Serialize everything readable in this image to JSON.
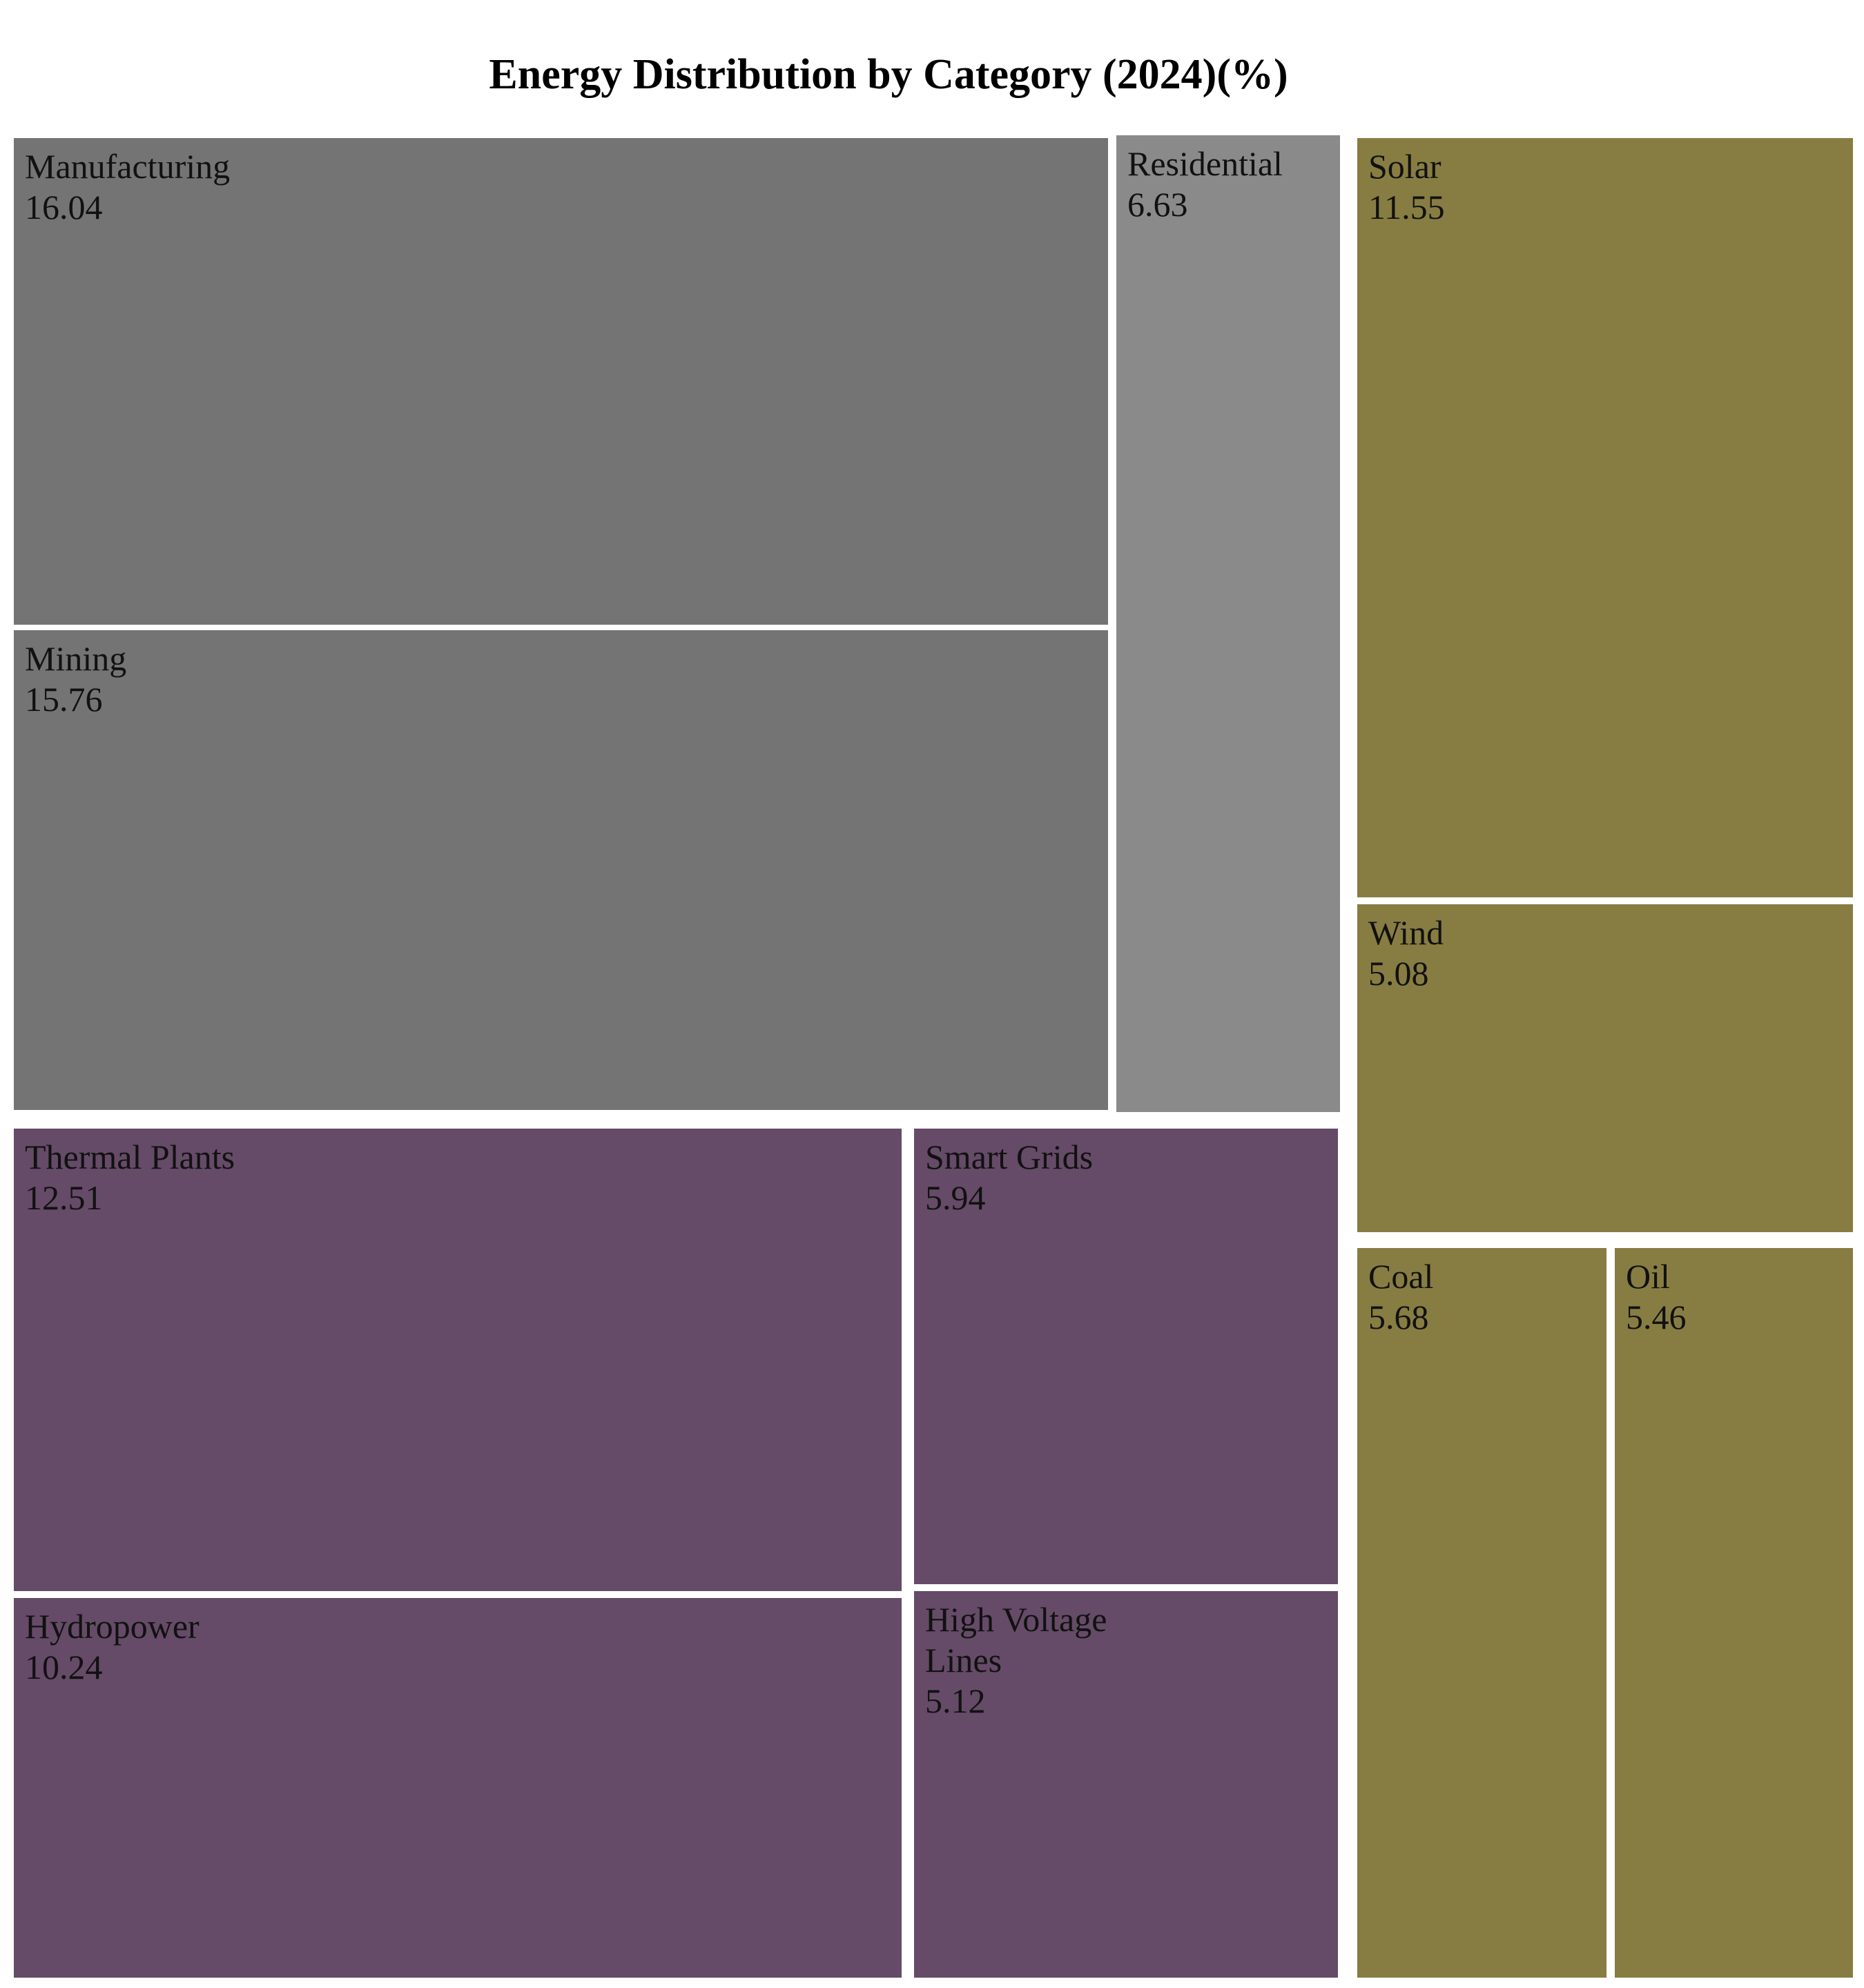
{
  "chart_data": {
    "type": "treemap",
    "title": "Energy Distribution by Category (2024)(%)",
    "colors": {
      "gray-dark": "#747474",
      "gray-light": "#8a8a8a",
      "purple": "#654b67",
      "olive": "#877d42"
    },
    "items": [
      {
        "label": "Manufacturing",
        "value": 16.04,
        "color": "gray-dark"
      },
      {
        "label": "Mining",
        "value": 15.76,
        "color": "gray-dark"
      },
      {
        "label": "Residential",
        "value": 6.63,
        "color": "gray-light"
      },
      {
        "label": "Thermal Plants",
        "value": 12.51,
        "color": "purple"
      },
      {
        "label": "Hydropower",
        "value": 10.24,
        "color": "purple"
      },
      {
        "label": "Smart Grids",
        "value": 5.94,
        "color": "purple"
      },
      {
        "label": "High Voltage Lines",
        "value": 5.12,
        "color": "purple"
      },
      {
        "label": "Solar",
        "value": 11.55,
        "color": "olive"
      },
      {
        "label": "Wind",
        "value": 5.08,
        "color": "olive"
      },
      {
        "label": "Coal",
        "value": 5.68,
        "color": "olive"
      },
      {
        "label": "Oil",
        "value": 5.46,
        "color": "olive"
      }
    ]
  }
}
